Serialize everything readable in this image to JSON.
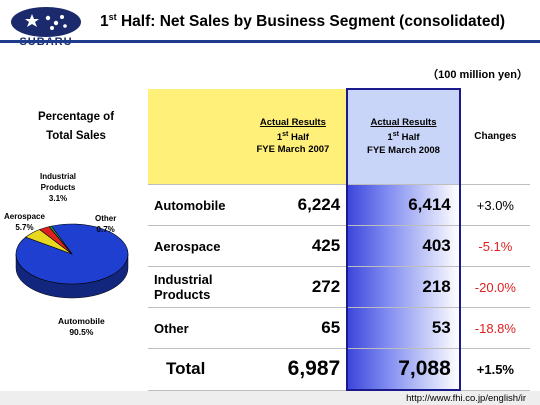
{
  "header": {
    "brand": "SUBARU",
    "title_prefix": "1",
    "title_sup": "st",
    "title_rest": " Half: Net Sales by Business Segment (consolidated)"
  },
  "units": "（100 million yen）",
  "pie_section": {
    "title_line1": "Percentage of",
    "title_line2": "Total Sales"
  },
  "colors": {
    "automobile": "#1f3fd0",
    "aerospace": "#e8d820",
    "industrial": "#e02020",
    "other": "#2aa848",
    "title_bar": "#1e3c8c"
  },
  "chart_data": [
    {
      "type": "pie",
      "title": "Percentage of Total Sales",
      "categories": [
        "Automobile",
        "Aerospace",
        "Industrial Products",
        "Other"
      ],
      "values": [
        90.5,
        5.7,
        3.1,
        0.7
      ],
      "value_labels": [
        "90.5%",
        "5.7%",
        "3.1%",
        "0.7%"
      ]
    },
    {
      "type": "table",
      "columns": [
        "",
        "Actual Results 1st Half FYE March 2007",
        "Actual Results 1st Half FYE March 2008",
        "Changes"
      ],
      "rows": [
        [
          "Automobile",
          "6,224",
          "6,414",
          "+3.0%"
        ],
        [
          "Aerospace",
          "425",
          "403",
          "-5.1%"
        ],
        [
          "Industrial Products",
          "272",
          "218",
          "-20.0%"
        ],
        [
          "Other",
          "65",
          "53",
          "-18.8%"
        ],
        [
          "Total",
          "6,987",
          "7,088",
          "+1.5%"
        ]
      ]
    }
  ],
  "pie_labels": {
    "industrial_l1": "Industrial",
    "industrial_l2": "Products",
    "industrial_pct": "3.1%",
    "aerospace": "Aerospace",
    "aerospace_pct": "5.7%",
    "other": "Other",
    "other_pct": "0.7%",
    "automobile": "Automobile",
    "automobile_pct": "90.5%"
  },
  "table": {
    "col07": {
      "line1": "Actual Results",
      "line2_num": "1",
      "line2_sup": "st",
      "line2_rest": " Half",
      "line3": "FYE March 2007"
    },
    "col08": {
      "line1": "Actual Results",
      "line2_num": "1",
      "line2_sup": "st",
      "line2_rest": " Half",
      "line3": "FYE March 2008"
    },
    "changes": "Changes",
    "rows": [
      {
        "label": "Automobile",
        "v07": "6,224",
        "v08": "6,414",
        "change": "+3.0%"
      },
      {
        "label": "Aerospace",
        "v07": "425",
        "v08": "403",
        "change": "-5.1%"
      },
      {
        "label_l1": "Industrial",
        "label_l2": "Products",
        "v07": "272",
        "v08": "218",
        "change": "-20.0%"
      },
      {
        "label": "Other",
        "v07": "65",
        "v08": "53",
        "change": "-18.8%"
      }
    ],
    "total": {
      "label": "Total",
      "v07": "6,987",
      "v08": "7,088",
      "change": "+1.5%"
    }
  },
  "footer": {
    "url": "http://www.fhi.co.jp/english/ir"
  }
}
